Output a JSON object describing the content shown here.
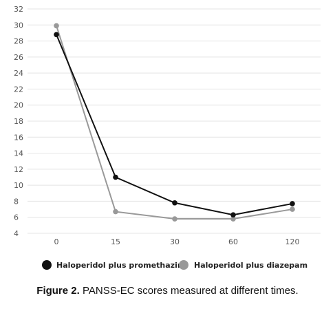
{
  "chart_data": {
    "type": "line",
    "categories": [
      "0",
      "15",
      "30",
      "60",
      "120"
    ],
    "series": [
      {
        "name": "Haloperidol plus promethazine",
        "color": "#111111",
        "values": [
          28.8,
          11.0,
          7.8,
          6.3,
          7.7
        ]
      },
      {
        "name": "Haloperidol plus diazepam",
        "color": "#999999",
        "values": [
          29.9,
          6.7,
          5.8,
          5.8,
          7.0
        ]
      }
    ],
    "yticks": [
      4,
      6,
      8,
      10,
      12,
      14,
      16,
      18,
      20,
      22,
      24,
      26,
      28,
      30,
      32
    ],
    "ylim": [
      4,
      32
    ],
    "grid": true,
    "legend_position": "bottom",
    "title": "",
    "xlabel": "",
    "ylabel": ""
  },
  "caption": {
    "label": "Figure 2.",
    "text": " PANSS-EC scores measured at different times."
  }
}
